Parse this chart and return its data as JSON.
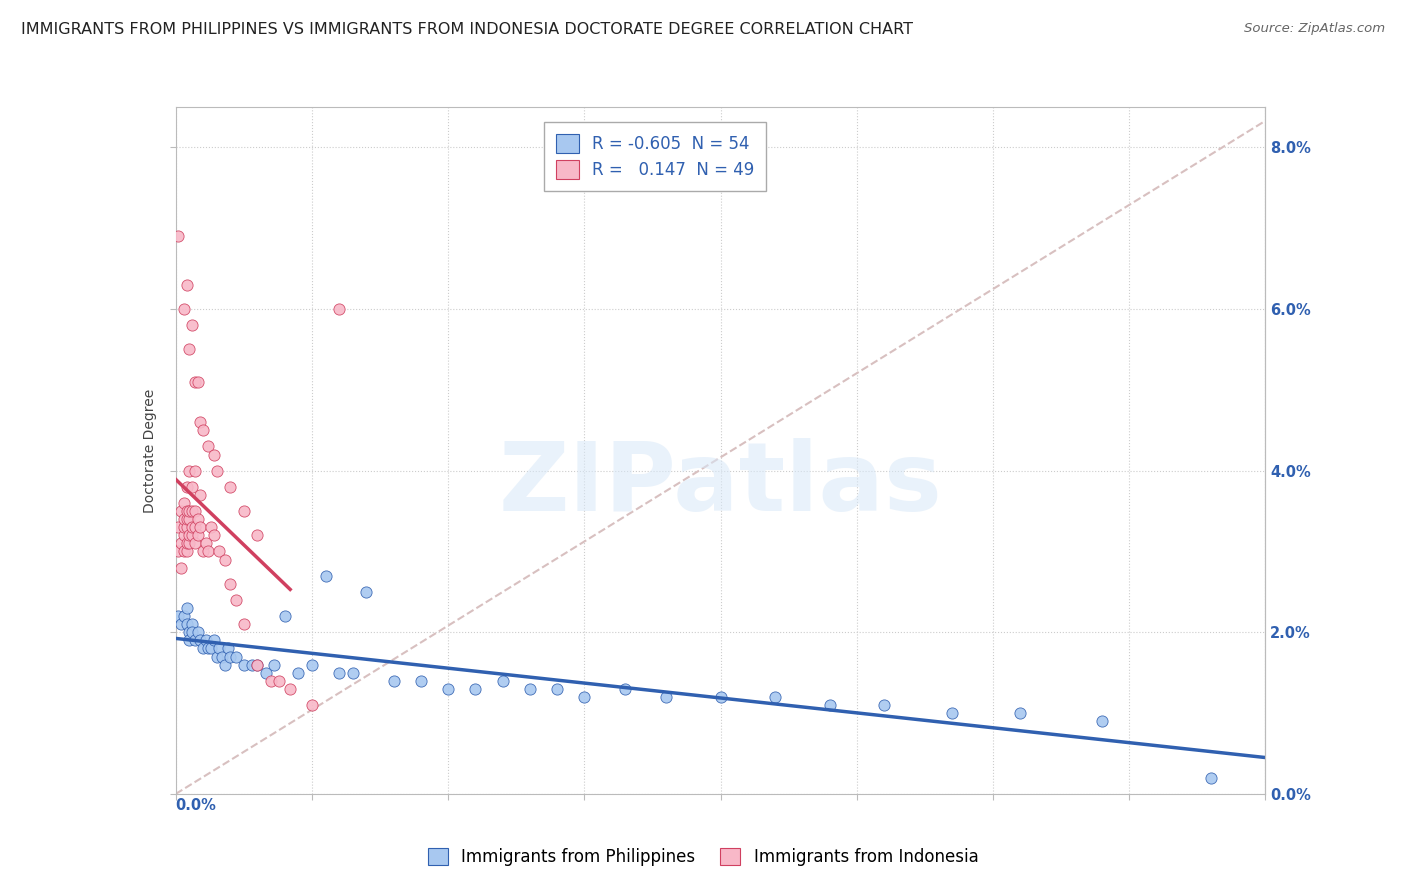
{
  "title": "IMMIGRANTS FROM PHILIPPINES VS IMMIGRANTS FROM INDONESIA DOCTORATE DEGREE CORRELATION CHART",
  "source": "Source: ZipAtlas.com",
  "ylabel": "Doctorate Degree",
  "legend_label_philippines": "Immigrants from Philippines",
  "legend_label_indonesia": "Immigrants from Indonesia",
  "R_philippines": "-0.605",
  "N_philippines": "54",
  "R_indonesia": "0.147",
  "N_indonesia": "49",
  "philippines_color": "#a8c8f0",
  "indonesia_color": "#f8b8c8",
  "philippines_line_color": "#3060b0",
  "indonesia_line_color": "#d04060",
  "diag_line_color": "#d8c0c0",
  "background_color": "#ffffff",
  "grid_color": "#cccccc",
  "philippines_x": [
    0.001,
    0.002,
    0.003,
    0.004,
    0.004,
    0.005,
    0.005,
    0.006,
    0.006,
    0.007,
    0.008,
    0.009,
    0.01,
    0.011,
    0.012,
    0.013,
    0.014,
    0.015,
    0.016,
    0.017,
    0.018,
    0.019,
    0.02,
    0.022,
    0.025,
    0.028,
    0.03,
    0.033,
    0.036,
    0.04,
    0.045,
    0.05,
    0.055,
    0.06,
    0.065,
    0.07,
    0.08,
    0.09,
    0.1,
    0.11,
    0.12,
    0.13,
    0.14,
    0.15,
    0.165,
    0.18,
    0.2,
    0.22,
    0.24,
    0.26,
    0.285,
    0.31,
    0.34,
    0.38
  ],
  "philippines_y": [
    0.022,
    0.021,
    0.022,
    0.023,
    0.021,
    0.02,
    0.019,
    0.021,
    0.02,
    0.019,
    0.02,
    0.019,
    0.018,
    0.019,
    0.018,
    0.018,
    0.019,
    0.017,
    0.018,
    0.017,
    0.016,
    0.018,
    0.017,
    0.017,
    0.016,
    0.016,
    0.016,
    0.015,
    0.016,
    0.022,
    0.015,
    0.016,
    0.027,
    0.015,
    0.015,
    0.025,
    0.014,
    0.014,
    0.013,
    0.013,
    0.014,
    0.013,
    0.013,
    0.012,
    0.013,
    0.012,
    0.012,
    0.012,
    0.011,
    0.011,
    0.01,
    0.01,
    0.009,
    0.002
  ],
  "indonesia_x": [
    0.001,
    0.001,
    0.002,
    0.002,
    0.002,
    0.003,
    0.003,
    0.003,
    0.003,
    0.003,
    0.004,
    0.004,
    0.004,
    0.004,
    0.004,
    0.004,
    0.005,
    0.005,
    0.005,
    0.005,
    0.005,
    0.006,
    0.006,
    0.006,
    0.006,
    0.007,
    0.007,
    0.007,
    0.007,
    0.008,
    0.008,
    0.009,
    0.009,
    0.01,
    0.011,
    0.012,
    0.013,
    0.014,
    0.015,
    0.016,
    0.018,
    0.02,
    0.022,
    0.025,
    0.03,
    0.035,
    0.038,
    0.042,
    0.05
  ],
  "indonesia_y": [
    0.03,
    0.033,
    0.028,
    0.031,
    0.035,
    0.03,
    0.032,
    0.033,
    0.034,
    0.036,
    0.03,
    0.031,
    0.033,
    0.034,
    0.035,
    0.038,
    0.031,
    0.032,
    0.034,
    0.035,
    0.04,
    0.032,
    0.033,
    0.035,
    0.038,
    0.031,
    0.033,
    0.035,
    0.04,
    0.032,
    0.034,
    0.033,
    0.037,
    0.03,
    0.031,
    0.03,
    0.033,
    0.032,
    0.04,
    0.03,
    0.029,
    0.026,
    0.024,
    0.021,
    0.016,
    0.014,
    0.014,
    0.013,
    0.011
  ],
  "indonesia_outliers_x": [
    0.001,
    0.003,
    0.004,
    0.005,
    0.006,
    0.007,
    0.008,
    0.009,
    0.01,
    0.012,
    0.014,
    0.02,
    0.025,
    0.03,
    0.06
  ],
  "indonesia_outliers_y": [
    0.069,
    0.06,
    0.063,
    0.055,
    0.058,
    0.051,
    0.051,
    0.046,
    0.045,
    0.043,
    0.042,
    0.038,
    0.035,
    0.032,
    0.06
  ],
  "xlim": [
    0.0,
    0.4
  ],
  "ylim": [
    0.0,
    0.085
  ],
  "ytick_vals": [
    0.0,
    0.02,
    0.04,
    0.06,
    0.08
  ],
  "ytick_labels": [
    "0.0%",
    "2.0%",
    "4.0%",
    "6.0%",
    "8.0%"
  ],
  "xtick_left_label": "0.0%",
  "title_fontsize": 11.5,
  "axis_label_fontsize": 10,
  "tick_fontsize": 10.5,
  "legend_fontsize": 12,
  "source_fontsize": 9.5,
  "watermark_text": "ZIPatlas",
  "watermark_fontsize": 70
}
